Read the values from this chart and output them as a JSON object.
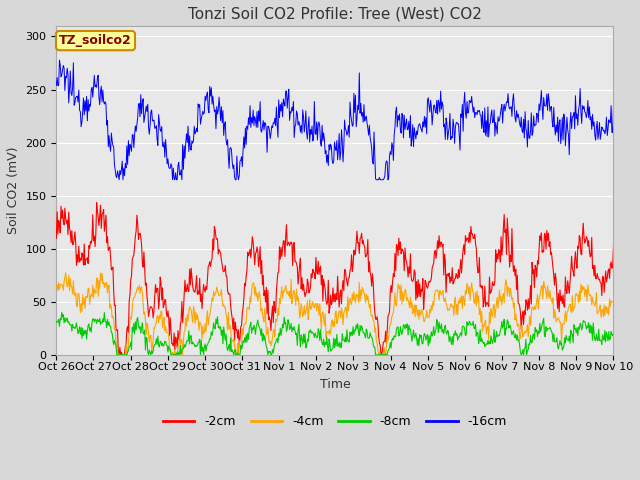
{
  "title": "Tonzi Soil CO2 Profile: Tree (West) CO2",
  "ylabel": "Soil CO2 (mV)",
  "xlabel": "Time",
  "annotation": "TZ_soilco2",
  "x_tick_labels": [
    "Oct 26",
    "Oct 27",
    "Oct 28",
    "Oct 29",
    "Oct 30",
    "Oct 31",
    "Nov 1",
    "Nov 2",
    "Nov 3",
    "Nov 4",
    "Nov 5",
    "Nov 6",
    "Nov 7",
    "Nov 8",
    "Nov 9",
    "Nov 10"
  ],
  "ylim": [
    0,
    310
  ],
  "yticks": [
    0,
    50,
    100,
    150,
    200,
    250,
    300
  ],
  "legend_labels": [
    "-2cm",
    "-4cm",
    "-8cm",
    "-16cm"
  ],
  "legend_colors": [
    "#ff0000",
    "#ffa500",
    "#00cc00",
    "#0000ff"
  ],
  "series_colors": {
    "m2cm": "#ff0000",
    "m4cm": "#ffa500",
    "m8cm": "#00cc00",
    "m16cm": "#0000ff"
  },
  "background_color": "#d8d8d8",
  "plot_bg_color": "#e8e8e8",
  "title_fontsize": 11,
  "axis_label_fontsize": 9,
  "tick_fontsize": 8,
  "legend_fontsize": 9
}
